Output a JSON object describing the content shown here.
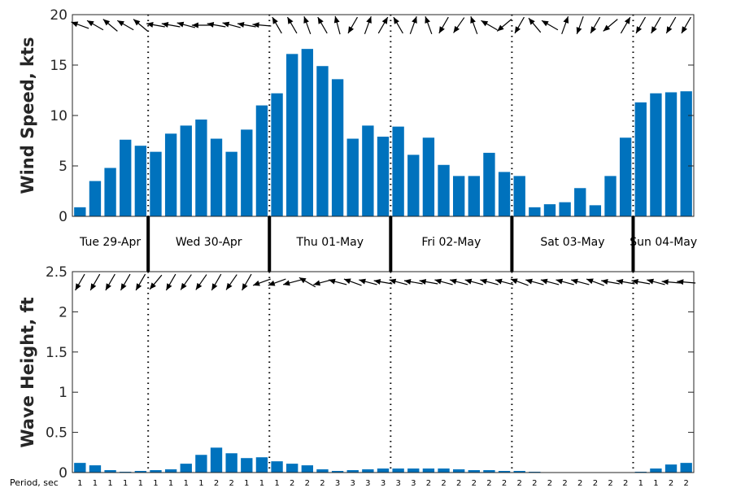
{
  "colors": {
    "bar": "#0072bd",
    "axis": "#262626",
    "arrow": "#000000"
  },
  "days": [
    "Tue 29-Apr",
    "Wed 30-Apr",
    "Thu 01-May",
    "Fri 02-May",
    "Sat 03-May",
    "Sun 04-May"
  ],
  "period_title": "Period, sec",
  "chart_data": [
    {
      "type": "bar",
      "ylabel": "Wind Speed, kts",
      "ylim": [
        0,
        20
      ],
      "yticks": [
        0,
        5,
        10,
        15,
        20
      ],
      "x_start_slot": 0,
      "values": [
        0.9,
        3.5,
        4.8,
        7.6,
        7.0,
        6.4,
        8.2,
        9.0,
        9.6,
        7.7,
        6.4,
        8.6,
        11.0,
        12.2,
        16.1,
        16.6,
        14.9,
        13.6,
        7.7,
        9.0,
        7.9,
        8.9,
        6.1,
        7.8,
        5.1,
        4.0,
        4.0,
        6.3,
        4.4,
        4.0,
        0.9,
        1.2,
        1.4,
        2.8,
        1.1,
        4.0,
        7.8,
        11.3,
        12.2,
        12.3,
        12.4
      ],
      "arrow_directions_deg": [
        290,
        300,
        310,
        300,
        310,
        280,
        280,
        285,
        270,
        280,
        285,
        280,
        275,
        330,
        330,
        340,
        330,
        345,
        210,
        20,
        30,
        330,
        20,
        340,
        210,
        215,
        340,
        300,
        230,
        210,
        320,
        300,
        20,
        200,
        210,
        230,
        30,
        210,
        210,
        210,
        210
      ]
    },
    {
      "type": "bar",
      "ylabel": "Wave Height, ft",
      "ylim": [
        0,
        2.5
      ],
      "yticks": [
        "0",
        "0.5",
        "1",
        "1.5",
        "2",
        "2.5"
      ],
      "x_start_slot": 0,
      "values": [
        0.12,
        0.09,
        0.03,
        0.01,
        0.02,
        0.03,
        0.04,
        0.11,
        0.22,
        0.31,
        0.24,
        0.18,
        0.19,
        0.14,
        0.11,
        0.09,
        0.04,
        0.02,
        0.03,
        0.04,
        0.05,
        0.05,
        0.05,
        0.05,
        0.05,
        0.04,
        0.03,
        0.03,
        0.02,
        0.02,
        0.01,
        0,
        0,
        0,
        0,
        0,
        0,
        0.01,
        0.05,
        0.1,
        0.12
      ],
      "arrow_directions_deg": [
        210,
        210,
        210,
        210,
        210,
        220,
        210,
        215,
        215,
        210,
        215,
        210,
        250,
        250,
        255,
        300,
        255,
        285,
        290,
        285,
        280,
        285,
        280,
        280,
        285,
        285,
        285,
        285,
        285,
        290,
        285,
        285,
        285,
        285,
        290,
        280,
        280,
        280,
        285,
        275,
        275
      ],
      "periods": [
        1,
        1,
        1,
        1,
        1,
        1,
        1,
        1,
        1,
        2,
        2,
        1,
        1,
        1,
        2,
        2,
        2,
        3,
        3,
        3,
        3,
        3,
        3,
        2,
        2,
        2,
        2,
        2,
        2,
        2,
        2,
        2,
        2,
        2,
        2,
        2,
        2,
        1,
        1,
        2,
        2
      ]
    }
  ]
}
